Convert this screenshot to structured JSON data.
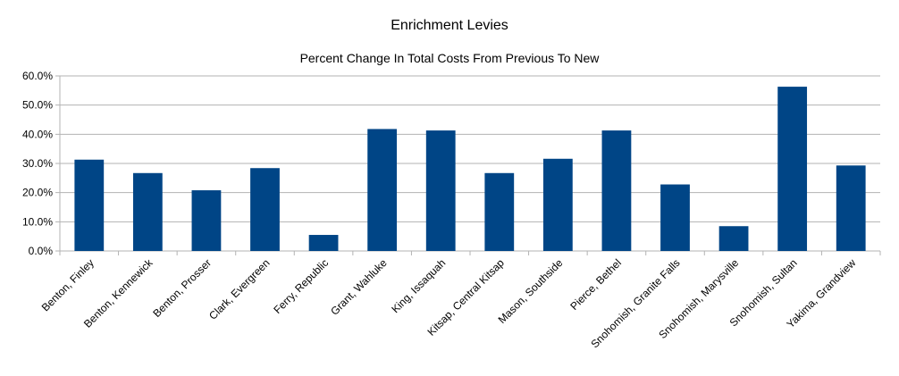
{
  "chart_data": {
    "type": "bar",
    "title": "Enrichment Levies",
    "subtitle": "Percent Change In Total Costs From Previous To New",
    "categories": [
      "Benton, Finley",
      "Benton, Kennewick",
      "Benton, Prosser",
      "Clark, Evergreen",
      "Ferry, Republic",
      "Grant, Wahluke",
      "King, Issaquah",
      "Kitsap, Central Kitsap",
      "Mason, Southside",
      "Pierce, Bethel",
      "Snohomish, Granite Falls",
      "Snohomish, Marysville",
      "Snohomish, Sultan",
      "Yakima, Grandview"
    ],
    "values": [
      31.3,
      26.7,
      20.8,
      28.4,
      5.5,
      41.8,
      41.3,
      26.7,
      31.6,
      41.3,
      22.8,
      8.5,
      56.3,
      29.3
    ],
    "ylim": [
      0,
      60
    ],
    "yticks": [
      0,
      10,
      20,
      30,
      40,
      50,
      60
    ],
    "ytick_labels": [
      "0.0%",
      "10.0%",
      "20.0%",
      "30.0%",
      "40.0%",
      "50.0%",
      "60.0%"
    ],
    "grid": true,
    "colors": {
      "bar": "#004586",
      "grid": "#b3b3b3",
      "axis": "#b3b3b3"
    }
  }
}
